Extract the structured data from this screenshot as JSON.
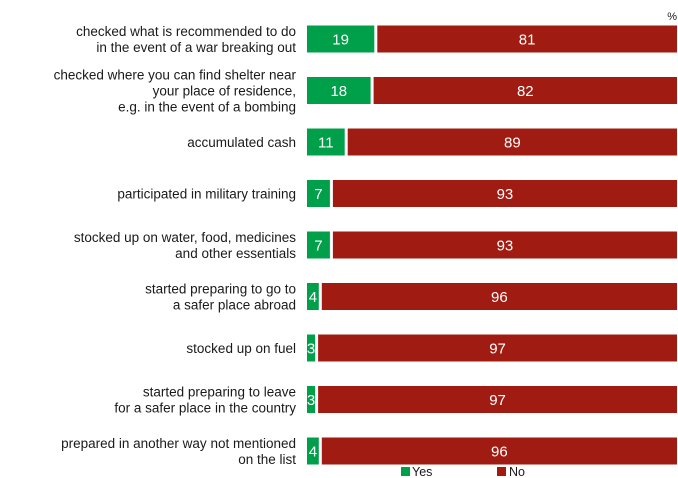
{
  "chart_data": {
    "type": "bar",
    "orientation": "horizontal",
    "stacked": true,
    "unit": "%",
    "categories": [
      [
        "checked what is recommended to do",
        "in the event of a war breaking out"
      ],
      [
        "checked where you can find shelter near",
        "your place of residence,",
        "e.g. in the event of a bombing"
      ],
      [
        "accumulated cash"
      ],
      [
        "participated in military training"
      ],
      [
        "stocked up on water, food, medicines",
        "and other essentials"
      ],
      [
        "started preparing to go to",
        "a safer place abroad"
      ],
      [
        "stocked up on fuel"
      ],
      [
        "started preparing to leave",
        "for a safer place in the country"
      ],
      [
        "prepared in another way not mentioned",
        "on the list"
      ]
    ],
    "series": [
      {
        "name": "Yes",
        "color": "#00a04b",
        "values": [
          19,
          18,
          11,
          7,
          7,
          4,
          3,
          3,
          4
        ]
      },
      {
        "name": "No",
        "color": "#a01c12",
        "values": [
          81,
          82,
          89,
          93,
          93,
          96,
          97,
          97,
          96
        ]
      }
    ],
    "xlim": [
      0,
      100
    ],
    "legend_position": "bottom-center",
    "grid": false
  }
}
